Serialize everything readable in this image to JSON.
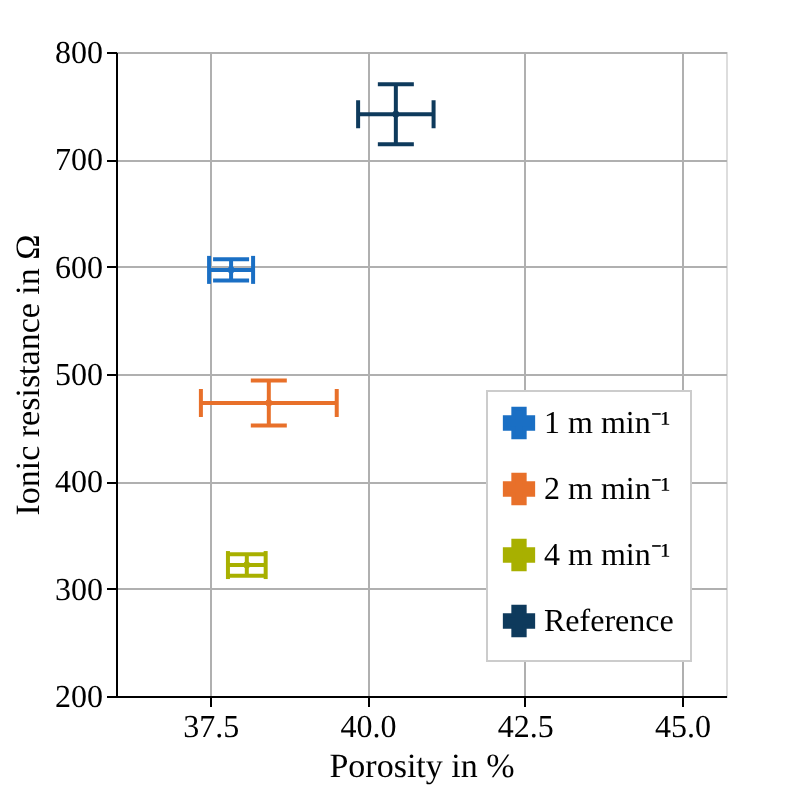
{
  "chart_data": {
    "type": "scatter",
    "xlabel": "Porosity in %",
    "ylabel": "Ionic resistance in Ω",
    "xlim": [
      36.0,
      45.7
    ],
    "xticks": [
      {
        "value": 37.5,
        "label": "37.5"
      },
      {
        "value": 40,
        "label": "40.0"
      },
      {
        "value": 42.5,
        "label": "42.5"
      },
      {
        "value": 45,
        "label": "45.0"
      }
    ],
    "ylim": [
      200,
      800
    ],
    "yticks": [
      200,
      300,
      400,
      500,
      600,
      700,
      800
    ],
    "grid": true,
    "legend": "bottom right",
    "marker": "none",
    "series": [
      {
        "name": "1 m min⁻¹",
        "color": "#1a6fc4",
        "x": [
          37.83
        ],
        "values": [
          597
        ],
        "errors": [
          10
        ],
        "xerrors": [
          0.35
        ]
      },
      {
        "name": "2 m min⁻¹",
        "color": "#e8702a",
        "x": [
          38.43
        ],
        "values": [
          473
        ],
        "errors": [
          21
        ],
        "xerrors": [
          1.08
        ]
      },
      {
        "name": "4 m min⁻¹",
        "color": "#a8b000",
        "x": [
          38.08
        ],
        "values": [
          322
        ],
        "errors": [
          10
        ],
        "xerrors": [
          0.3
        ]
      },
      {
        "name": "Reference",
        "color": "#0e3a5c",
        "x": [
          40.45
        ],
        "values": [
          742
        ],
        "errors": [
          28
        ],
        "xerrors": [
          0.6
        ]
      }
    ]
  }
}
